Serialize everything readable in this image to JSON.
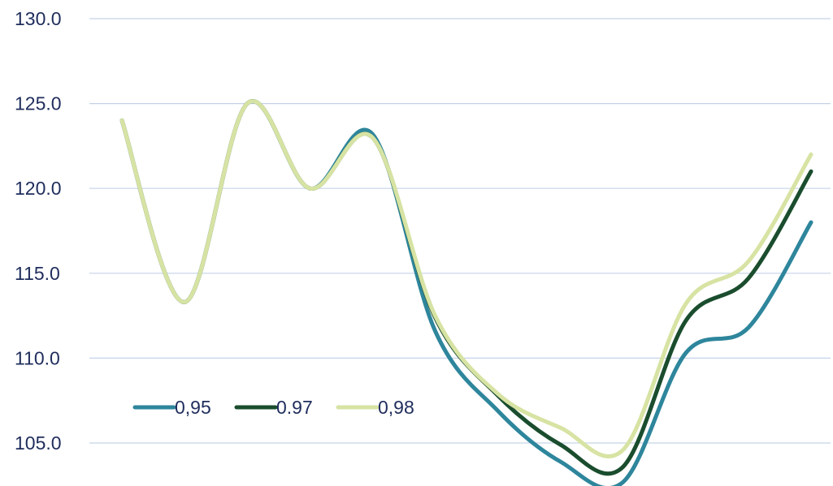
{
  "chart_data": {
    "type": "line",
    "title": "",
    "xlabel": "",
    "ylabel": "",
    "ylim": [
      102.5,
      130
    ],
    "y_ticks": [
      105,
      110,
      115,
      120,
      125,
      130
    ],
    "y_tick_labels": [
      "105.0",
      "110.0",
      "115.0",
      "120.0",
      "125.0",
      "130.0"
    ],
    "grid": true,
    "smooth": true,
    "legend_position": "lower-left",
    "x": [
      1,
      2,
      3,
      4,
      5,
      6,
      7,
      8,
      9,
      10,
      11,
      12
    ],
    "series": [
      {
        "name": "0,95",
        "color": "#2e869c",
        "values": [
          124.0,
          113.3,
          125.0,
          120.0,
          123.2,
          111.6,
          106.9,
          103.9,
          102.7,
          110.3,
          111.8,
          118.0
        ]
      },
      {
        "name": "0.97",
        "color": "#1a4d2e",
        "values": [
          124.0,
          113.3,
          125.0,
          120.0,
          123.0,
          112.4,
          107.8,
          104.9,
          103.6,
          112.2,
          114.7,
          121.0
        ]
      },
      {
        "name": "0,98",
        "color": "#d7e3a3",
        "values": [
          124.0,
          113.3,
          125.0,
          120.0,
          123.0,
          112.5,
          107.9,
          105.9,
          104.6,
          113.2,
          115.7,
          122.0
        ]
      }
    ]
  }
}
